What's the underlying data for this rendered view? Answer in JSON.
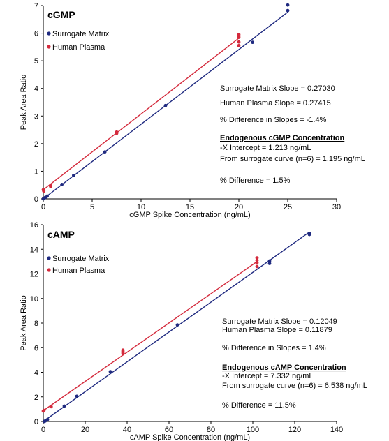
{
  "chart_data": [
    {
      "type": "scatter",
      "title": "cGMP",
      "xlabel": "cGMP Spike Concentration (ng/mL)",
      "ylabel": "Peak Area Ratio",
      "xlim": [
        0,
        30
      ],
      "ylim": [
        0,
        7
      ],
      "xticks": [
        "0",
        "5",
        "10",
        "15",
        "20",
        "25",
        "30"
      ],
      "yticks": [
        "0",
        "1",
        "2",
        "3",
        "4",
        "5",
        "6",
        "7"
      ],
      "legend": "top-left",
      "grid": false,
      "series": [
        {
          "name": "Surrogate Matrix",
          "color": "#1f2a80",
          "points": [
            [
              0,
              0.0
            ],
            [
              0.2,
              0.05
            ],
            [
              0.4,
              0.1
            ],
            [
              1.9,
              0.52
            ],
            [
              3.1,
              0.85
            ],
            [
              6.3,
              1.7
            ],
            [
              12.5,
              3.38
            ],
            [
              21.4,
              5.67
            ],
            [
              25,
              6.82
            ],
            [
              25,
              7.02
            ]
          ],
          "fit": [
            [
              0,
              0.0
            ],
            [
              25,
              6.76
            ]
          ]
        },
        {
          "name": "Human Plasma",
          "color": "#d42a3c",
          "points": [
            [
              0,
              0.33
            ],
            [
              0.05,
              0.28
            ],
            [
              0.75,
              0.48
            ],
            [
              0.75,
              0.45
            ],
            [
              7.5,
              2.37
            ],
            [
              7.5,
              2.42
            ],
            [
              20,
              5.55
            ],
            [
              20,
              5.68
            ],
            [
              20,
              5.85
            ],
            [
              20,
              5.9
            ],
            [
              20,
              5.95
            ]
          ],
          "fit": [
            [
              0,
              0.33
            ],
            [
              20,
              5.82
            ]
          ]
        }
      ],
      "annotations": [
        "Surrogate Matrix Slope = 0.27030",
        "Human Plasma Slope = 0.27415",
        "% Difference in Slopes = -1.4%",
        "Endogenous cGMP Concentration",
        "-X Intercept = 1.213 ng/mL",
        "From surrogate curve (n=6) = 1.195 ng/mL",
        "% Difference = 1.5%"
      ]
    },
    {
      "type": "scatter",
      "title": "cAMP",
      "xlabel": "cAMP Spike Concentration (ng/mL)",
      "ylabel": "Peak Area Ratio",
      "xlim": [
        0,
        140
      ],
      "ylim": [
        0,
        16
      ],
      "xticks": [
        "0",
        "20",
        "40",
        "60",
        "80",
        "100",
        "120",
        "140"
      ],
      "yticks": [
        "0",
        "2",
        "4",
        "6",
        "8",
        "10",
        "12",
        "14",
        "16"
      ],
      "legend": "top-left",
      "grid": false,
      "series": [
        {
          "name": "Surrogate Matrix",
          "color": "#1f2a80",
          "points": [
            [
              0.5,
              0.0
            ],
            [
              1,
              0.05
            ],
            [
              2,
              0.15
            ],
            [
              10,
              1.25
            ],
            [
              16,
              2.05
            ],
            [
              32,
              4.05
            ],
            [
              64,
              7.85
            ],
            [
              108,
              12.85
            ],
            [
              108,
              13.05
            ],
            [
              127,
              15.2
            ],
            [
              127,
              15.3
            ]
          ],
          "fit": [
            [
              0,
              0.0
            ],
            [
              127,
              15.4
            ]
          ]
        },
        {
          "name": "Human Plasma",
          "color": "#d42a3c",
          "points": [
            [
              0,
              0.85
            ],
            [
              0.3,
              0.9
            ],
            [
              3.75,
              1.2
            ],
            [
              38,
              5.5
            ],
            [
              38,
              5.6
            ],
            [
              38,
              5.7
            ],
            [
              38,
              5.8
            ],
            [
              102,
              12.6
            ],
            [
              102,
              12.9
            ],
            [
              102,
              13.1
            ],
            [
              102,
              13.3
            ]
          ],
          "fit": [
            [
              0,
              0.88
            ],
            [
              102,
              13.0
            ]
          ]
        }
      ],
      "annotations": [
        "Surrogate Matrix Slope = 0.12049",
        "Human Plasma Slope = 0.11879",
        "% Difference in Slopes = 1.4%",
        "Endogenous cAMP Concentration",
        "-X Intercept = 7.332 ng/mL",
        "From surrogate curve (n=6) = 6.538 ng/mL",
        "% Difference = 11.5%"
      ]
    }
  ]
}
